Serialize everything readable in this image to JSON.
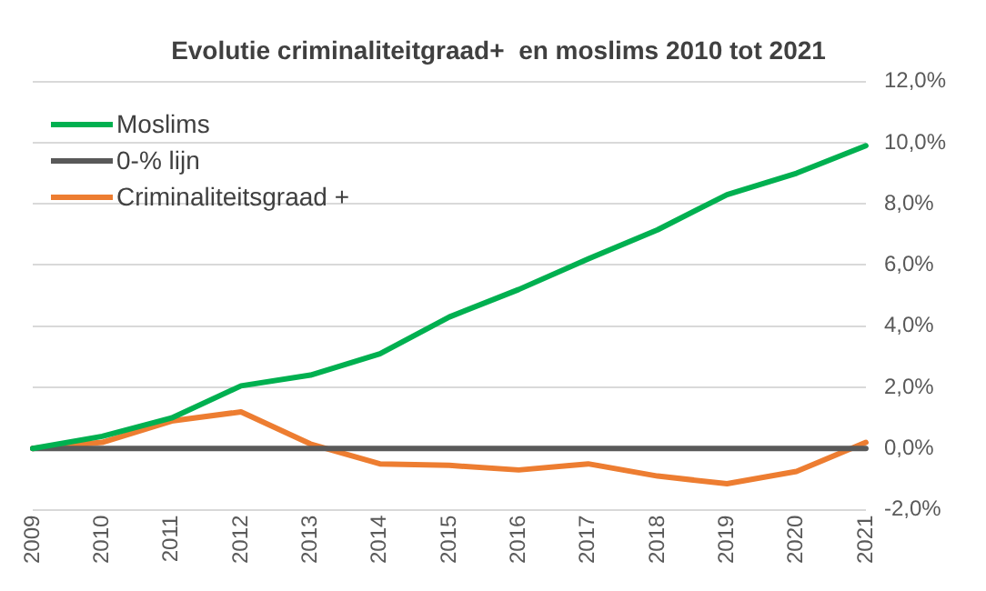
{
  "chart_data": {
    "type": "line",
    "title": "Evolutie criminaliteitgraad+  en moslims 2010 tot 2021",
    "categories": [
      "2009",
      "2010",
      "2011",
      "2012",
      "2013",
      "2014",
      "2015",
      "2016",
      "2017",
      "2018",
      "2019",
      "2020",
      "2021"
    ],
    "series": [
      {
        "name": "Moslims",
        "color": "#00b050",
        "values": [
          0,
          0.4,
          1.0,
          2.05,
          2.4,
          3.1,
          4.3,
          5.2,
          6.2,
          7.15,
          8.3,
          9.0,
          9.9
        ]
      },
      {
        "name": "0-% lijn",
        "color": "#595959",
        "values": [
          0,
          0,
          0,
          0,
          0,
          0,
          0,
          0,
          0,
          0,
          0,
          0,
          0
        ]
      },
      {
        "name": "Criminaliteitsgraad +",
        "color": "#ed7d31",
        "values": [
          0,
          0.2,
          0.9,
          1.2,
          0.15,
          -0.5,
          -0.55,
          -0.7,
          -0.5,
          -0.9,
          -1.15,
          -0.75,
          0.2
        ]
      }
    ],
    "ylim": [
      -2,
      12
    ],
    "yticks": [
      {
        "value": -2,
        "label": "-2,0%"
      },
      {
        "value": 0,
        "label": "0,0%"
      },
      {
        "value": 2,
        "label": "2,0%"
      },
      {
        "value": 4,
        "label": "4,0%"
      },
      {
        "value": 6,
        "label": "6,0%"
      },
      {
        "value": 8,
        "label": "8,0%"
      },
      {
        "value": 10,
        "label": "10,0%"
      },
      {
        "value": 12,
        "label": "12,0%"
      }
    ],
    "grid": "y",
    "legend": "top left",
    "marker": "none",
    "line_style": "solid"
  }
}
